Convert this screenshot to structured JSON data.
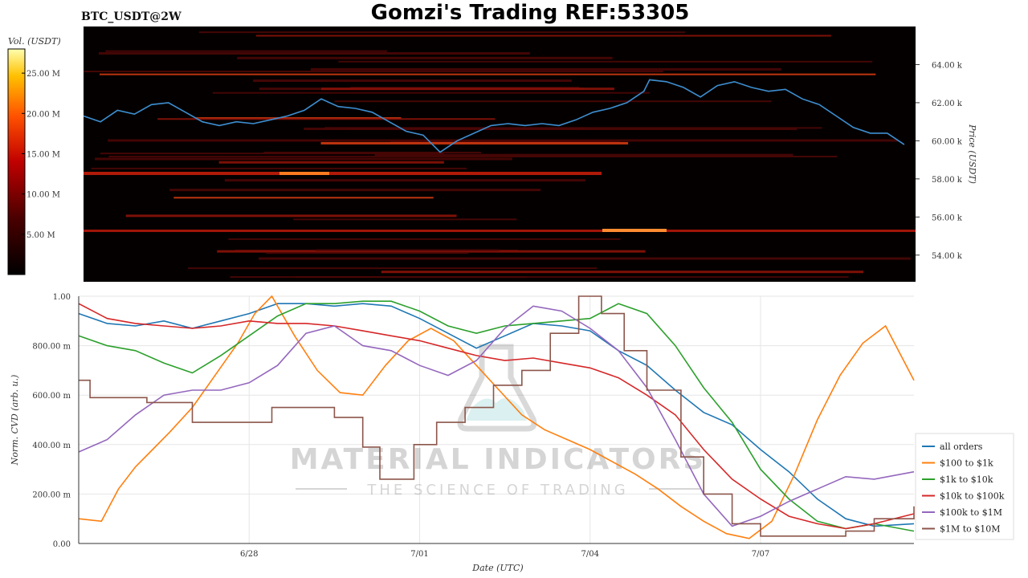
{
  "header": {
    "symbol": "BTC_USDT@2W",
    "title": "Gomzi's Trading REF:53305"
  },
  "watermark": {
    "brand": "MATERIAL INDICATORS",
    "tagline": "THE SCIENCE OF TRADING"
  },
  "colors": {
    "heatmap_bg": "#050000",
    "price_line": "#3d8fd1",
    "grid": "#e6e6e6"
  },
  "chart_data": [
    {
      "type": "heatmap",
      "colorbar": {
        "label": "Vol. (USDT)",
        "ticks": [
          "25.00 M",
          "20.00 M",
          "15.00 M",
          "10.00 M",
          "5.00 M"
        ],
        "tick_values": [
          25,
          20,
          15,
          10,
          5
        ],
        "range": [
          0,
          28
        ]
      },
      "ylabel": "Price (USDT)",
      "y_ticks": [
        "64.00 k",
        "62.00 k",
        "60.00 k",
        "58.00 k",
        "56.00 k",
        "54.00 k"
      ],
      "y_tick_values": [
        64000,
        62000,
        60000,
        58000,
        56000,
        54000
      ],
      "ylim": [
        52600,
        66000
      ],
      "xlim": [
        0,
        14.7
      ],
      "price_series": [
        [
          0.0,
          61300
        ],
        [
          0.3,
          61000
        ],
        [
          0.6,
          61600
        ],
        [
          0.9,
          61400
        ],
        [
          1.2,
          61900
        ],
        [
          1.5,
          62000
        ],
        [
          1.8,
          61500
        ],
        [
          2.1,
          61000
        ],
        [
          2.4,
          60800
        ],
        [
          2.7,
          61000
        ],
        [
          3.0,
          60900
        ],
        [
          3.3,
          61100
        ],
        [
          3.6,
          61300
        ],
        [
          3.9,
          61600
        ],
        [
          4.2,
          62200
        ],
        [
          4.5,
          61800
        ],
        [
          4.8,
          61700
        ],
        [
          5.1,
          61500
        ],
        [
          5.4,
          61000
        ],
        [
          5.7,
          60500
        ],
        [
          6.0,
          60300
        ],
        [
          6.3,
          59400
        ],
        [
          6.6,
          60000
        ],
        [
          6.9,
          60400
        ],
        [
          7.2,
          60800
        ],
        [
          7.5,
          60900
        ],
        [
          7.8,
          60800
        ],
        [
          8.1,
          60900
        ],
        [
          8.4,
          60800
        ],
        [
          8.7,
          61100
        ],
        [
          9.0,
          61500
        ],
        [
          9.3,
          61700
        ],
        [
          9.6,
          62000
        ],
        [
          9.9,
          62600
        ],
        [
          10.0,
          63200
        ],
        [
          10.3,
          63100
        ],
        [
          10.6,
          62800
        ],
        [
          10.9,
          62300
        ],
        [
          11.2,
          62900
        ],
        [
          11.5,
          63100
        ],
        [
          11.8,
          62800
        ],
        [
          12.1,
          62600
        ],
        [
          12.4,
          62700
        ],
        [
          12.7,
          62200
        ],
        [
          13.0,
          61900
        ],
        [
          13.3,
          61300
        ],
        [
          13.6,
          60700
        ],
        [
          13.9,
          60400
        ],
        [
          14.2,
          60400
        ],
        [
          14.5,
          59800
        ]
      ]
    },
    {
      "type": "line",
      "xlabel": "Date (UTC)",
      "ylabel": "Norm. CVD (arb. u.)",
      "y_ticks": [
        "1.00",
        "800.00 m",
        "600.00 m",
        "400.00 m",
        "200.00 m",
        "0.00"
      ],
      "y_tick_values": [
        1.0,
        0.8,
        0.6,
        0.4,
        0.2,
        0.0
      ],
      "x_ticks": [
        "6/28",
        "7/01",
        "7/04",
        "7/07"
      ],
      "x_tick_values": [
        3,
        6,
        9,
        12
      ],
      "xlim": [
        0,
        14.7
      ],
      "ylim": [
        0,
        1
      ],
      "grid": true,
      "legend_position": "right",
      "series": [
        {
          "name": "all orders",
          "color": "#1f77b4",
          "points": [
            [
              0,
              0.93
            ],
            [
              0.5,
              0.89
            ],
            [
              1,
              0.88
            ],
            [
              1.5,
              0.9
            ],
            [
              2,
              0.87
            ],
            [
              2.5,
              0.9
            ],
            [
              3,
              0.93
            ],
            [
              3.5,
              0.97
            ],
            [
              4,
              0.97
            ],
            [
              4.5,
              0.96
            ],
            [
              5,
              0.97
            ],
            [
              5.5,
              0.96
            ],
            [
              6,
              0.91
            ],
            [
              6.5,
              0.85
            ],
            [
              7,
              0.79
            ],
            [
              7.5,
              0.84
            ],
            [
              8,
              0.89
            ],
            [
              8.5,
              0.88
            ],
            [
              9,
              0.86
            ],
            [
              9.5,
              0.78
            ],
            [
              10,
              0.72
            ],
            [
              10.5,
              0.62
            ],
            [
              11,
              0.53
            ],
            [
              11.5,
              0.48
            ],
            [
              12,
              0.38
            ],
            [
              12.5,
              0.29
            ],
            [
              13,
              0.18
            ],
            [
              13.5,
              0.1
            ],
            [
              14,
              0.07
            ],
            [
              14.7,
              0.08
            ]
          ]
        },
        {
          "name": "$100 to $1k",
          "color": "#ff7f0e",
          "points": [
            [
              0,
              0.1
            ],
            [
              0.4,
              0.09
            ],
            [
              0.7,
              0.22
            ],
            [
              1,
              0.31
            ],
            [
              1.3,
              0.38
            ],
            [
              1.6,
              0.45
            ],
            [
              2,
              0.55
            ],
            [
              2.4,
              0.68
            ],
            [
              2.8,
              0.81
            ],
            [
              3.1,
              0.93
            ],
            [
              3.4,
              1.0
            ],
            [
              3.8,
              0.84
            ],
            [
              4.2,
              0.7
            ],
            [
              4.6,
              0.61
            ],
            [
              5,
              0.6
            ],
            [
              5.4,
              0.72
            ],
            [
              5.8,
              0.82
            ],
            [
              6.2,
              0.87
            ],
            [
              6.6,
              0.82
            ],
            [
              7,
              0.72
            ],
            [
              7.4,
              0.62
            ],
            [
              7.8,
              0.52
            ],
            [
              8.2,
              0.46
            ],
            [
              8.6,
              0.42
            ],
            [
              9,
              0.38
            ],
            [
              9.4,
              0.33
            ],
            [
              9.8,
              0.28
            ],
            [
              10.2,
              0.22
            ],
            [
              10.6,
              0.15
            ],
            [
              11,
              0.09
            ],
            [
              11.4,
              0.04
            ],
            [
              11.8,
              0.02
            ],
            [
              12.2,
              0.09
            ],
            [
              12.6,
              0.28
            ],
            [
              13,
              0.5
            ],
            [
              13.4,
              0.68
            ],
            [
              13.8,
              0.81
            ],
            [
              14.2,
              0.88
            ],
            [
              14.7,
              0.66
            ]
          ]
        },
        {
          "name": "$1k to $10k",
          "color": "#2ca02c",
          "points": [
            [
              0,
              0.84
            ],
            [
              0.5,
              0.8
            ],
            [
              1,
              0.78
            ],
            [
              1.5,
              0.73
            ],
            [
              2,
              0.69
            ],
            [
              2.5,
              0.76
            ],
            [
              3,
              0.84
            ],
            [
              3.5,
              0.92
            ],
            [
              4,
              0.97
            ],
            [
              4.5,
              0.97
            ],
            [
              5,
              0.98
            ],
            [
              5.5,
              0.98
            ],
            [
              6,
              0.94
            ],
            [
              6.5,
              0.88
            ],
            [
              7,
              0.85
            ],
            [
              7.5,
              0.88
            ],
            [
              8,
              0.89
            ],
            [
              8.5,
              0.9
            ],
            [
              9,
              0.91
            ],
            [
              9.5,
              0.97
            ],
            [
              10,
              0.93
            ],
            [
              10.5,
              0.8
            ],
            [
              11,
              0.63
            ],
            [
              11.5,
              0.49
            ],
            [
              12,
              0.3
            ],
            [
              12.5,
              0.18
            ],
            [
              13,
              0.09
            ],
            [
              13.5,
              0.06
            ],
            [
              14,
              0.08
            ],
            [
              14.7,
              0.05
            ]
          ]
        },
        {
          "name": "$10k to $100k",
          "color": "#d62728",
          "points": [
            [
              0,
              0.97
            ],
            [
              0.5,
              0.91
            ],
            [
              1,
              0.89
            ],
            [
              1.5,
              0.88
            ],
            [
              2,
              0.87
            ],
            [
              2.5,
              0.88
            ],
            [
              3,
              0.9
            ],
            [
              3.5,
              0.89
            ],
            [
              4,
              0.89
            ],
            [
              4.5,
              0.88
            ],
            [
              5,
              0.86
            ],
            [
              5.5,
              0.84
            ],
            [
              6,
              0.82
            ],
            [
              6.5,
              0.79
            ],
            [
              7,
              0.76
            ],
            [
              7.5,
              0.74
            ],
            [
              8,
              0.75
            ],
            [
              8.5,
              0.73
            ],
            [
              9,
              0.71
            ],
            [
              9.5,
              0.67
            ],
            [
              10,
              0.6
            ],
            [
              10.5,
              0.52
            ],
            [
              11,
              0.38
            ],
            [
              11.5,
              0.26
            ],
            [
              12,
              0.18
            ],
            [
              12.5,
              0.11
            ],
            [
              13,
              0.08
            ],
            [
              13.5,
              0.06
            ],
            [
              14,
              0.08
            ],
            [
              14.7,
              0.12
            ]
          ]
        },
        {
          "name": "$100k to $1M",
          "color": "#9467bd",
          "points": [
            [
              0,
              0.37
            ],
            [
              0.5,
              0.42
            ],
            [
              1,
              0.52
            ],
            [
              1.5,
              0.6
            ],
            [
              2,
              0.62
            ],
            [
              2.5,
              0.62
            ],
            [
              3,
              0.65
            ],
            [
              3.5,
              0.72
            ],
            [
              4,
              0.85
            ],
            [
              4.5,
              0.88
            ],
            [
              5,
              0.8
            ],
            [
              5.5,
              0.78
            ],
            [
              6,
              0.72
            ],
            [
              6.5,
              0.68
            ],
            [
              7,
              0.74
            ],
            [
              7.5,
              0.87
            ],
            [
              8,
              0.96
            ],
            [
              8.5,
              0.94
            ],
            [
              9,
              0.87
            ],
            [
              9.5,
              0.78
            ],
            [
              10,
              0.63
            ],
            [
              10.5,
              0.42
            ],
            [
              11,
              0.2
            ],
            [
              11.5,
              0.07
            ],
            [
              12,
              0.11
            ],
            [
              12.5,
              0.17
            ],
            [
              13,
              0.22
            ],
            [
              13.5,
              0.27
            ],
            [
              14,
              0.26
            ],
            [
              14.7,
              0.29
            ]
          ]
        },
        {
          "name": "$1M to $10M",
          "color": "#8c564b",
          "step": true,
          "points": [
            [
              0,
              0.66
            ],
            [
              0.2,
              0.59
            ],
            [
              1.2,
              0.57
            ],
            [
              1.6,
              0.57
            ],
            [
              2,
              0.49
            ],
            [
              3,
              0.49
            ],
            [
              3.4,
              0.55
            ],
            [
              4,
              0.55
            ],
            [
              4.5,
              0.51
            ],
            [
              5,
              0.39
            ],
            [
              5.3,
              0.26
            ],
            [
              5.9,
              0.4
            ],
            [
              6.3,
              0.49
            ],
            [
              6.8,
              0.55
            ],
            [
              7.3,
              0.64
            ],
            [
              7.8,
              0.7
            ],
            [
              8.3,
              0.85
            ],
            [
              8.8,
              1.0
            ],
            [
              9.2,
              0.93
            ],
            [
              9.6,
              0.78
            ],
            [
              10,
              0.62
            ],
            [
              10.6,
              0.35
            ],
            [
              11,
              0.2
            ],
            [
              11.5,
              0.08
            ],
            [
              12,
              0.03
            ],
            [
              13,
              0.03
            ],
            [
              13.5,
              0.05
            ],
            [
              14,
              0.1
            ],
            [
              14.7,
              0.15
            ]
          ]
        }
      ]
    }
  ]
}
